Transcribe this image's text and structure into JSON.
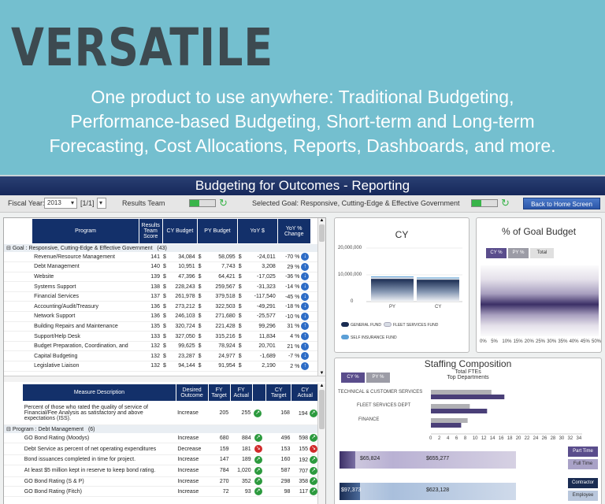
{
  "hero": {
    "title": "VERSATILE",
    "line1": "One product to use anywhere: Traditional Budgeting,",
    "line2": "Performance-based Budgeting, Short-term and Long-term",
    "line3": "Forecasting, Cost Allocations, Reports, Dashboards, and more."
  },
  "app": {
    "title": "Budgeting for Outcomes - Reporting",
    "fiscal_year_label": "Fiscal Year:",
    "fiscal_year_value": "2013",
    "page_value": "[1/1]",
    "results_team_label": "Results Team",
    "selected_goal": "Selected Goal: Responsive, Cutting-Edge & Effective Government",
    "home_button": "Back to Home Screen"
  },
  "colors": {
    "navy": "#13306a",
    "accent_green": "#39b54a",
    "teal_bg": "#74bfcf"
  },
  "program_table": {
    "headers": [
      "Program",
      "Results Team Score",
      "CY Budget",
      "PY Budget",
      "YoY $",
      "YoY % Change"
    ],
    "group_label": "Goal : Responsive, Cutting-Edge & Effective Government",
    "group_count": "(43)",
    "rows": [
      {
        "program": "Revenue/Resource Management",
        "score": "141",
        "cy": "34,084",
        "py": "58,095",
        "yoy": "-24,011",
        "pct": "-70 %",
        "dir": "down"
      },
      {
        "program": "Debt Management",
        "score": "140",
        "cy": "10,951",
        "py": "7,743",
        "yoy": "3,208",
        "pct": "29 %",
        "dir": "up"
      },
      {
        "program": "Website",
        "score": "139",
        "cy": "47,396",
        "py": "64,421",
        "yoy": "-17,025",
        "pct": "-36 %",
        "dir": "down"
      },
      {
        "program": "Systems Support",
        "score": "138",
        "cy": "228,243",
        "py": "259,567",
        "yoy": "-31,323",
        "pct": "-14 %",
        "dir": "down"
      },
      {
        "program": "Financial Services",
        "score": "137",
        "cy": "261,978",
        "py": "379,518",
        "yoy": "-117,540",
        "pct": "-45 %",
        "dir": "down"
      },
      {
        "program": "Accounting/Audit/Treasury",
        "score": "136",
        "cy": "273,212",
        "py": "322,503",
        "yoy": "-49,291",
        "pct": "-18 %",
        "dir": "down"
      },
      {
        "program": "Network Support",
        "score": "136",
        "cy": "246,103",
        "py": "271,680",
        "yoy": "-25,577",
        "pct": "-10 %",
        "dir": "down"
      },
      {
        "program": "Building Repairs and Maintenance",
        "score": "135",
        "cy": "320,724",
        "py": "221,428",
        "yoy": "99,296",
        "pct": "31 %",
        "dir": "up"
      },
      {
        "program": "Support/Help Desk",
        "score": "133",
        "cy": "327,050",
        "py": "315,216",
        "yoy": "11,834",
        "pct": "4 %",
        "dir": "up"
      },
      {
        "program": "Budget Preparation, Coordination, and",
        "score": "132",
        "cy": "99,625",
        "py": "78,924",
        "yoy": "20,701",
        "pct": "21 %",
        "dir": "up"
      },
      {
        "program": "Capital Budgeting",
        "score": "132",
        "cy": "23,287",
        "py": "24,977",
        "yoy": "-1,689",
        "pct": "-7 %",
        "dir": "down"
      },
      {
        "program": "Legislative Liaison",
        "score": "132",
        "cy": "94,144",
        "py": "91,954",
        "yoy": "2,190",
        "pct": "2 %",
        "dir": "up"
      }
    ]
  },
  "measure_table": {
    "headers": [
      "Measure Description",
      "Desired Outcome",
      "FY Target",
      "FY Actual",
      "",
      "CY Target",
      "CY Actual"
    ],
    "first_row": {
      "desc": "Percent of those who rated the quality of service of Financial/Fee Analysis as satisfactory and above expectations (ISS).",
      "outcome": "Increase",
      "fyt": "205",
      "fya": "255",
      "badge": "green",
      "cyt": "168",
      "cya": "194",
      "badge2": "green"
    },
    "group_label": "Program : Debt Management",
    "group_count": "(6)",
    "rows": [
      {
        "desc": "GO Bond Rating (Moodys)",
        "outcome": "Increase",
        "fyt": "680",
        "fya": "884",
        "b1": "green",
        "cyt": "496",
        "cya": "598",
        "b2": "green"
      },
      {
        "desc": "Debt Service as percent of net operating expenditures",
        "outcome": "Decrease",
        "fyt": "159",
        "fya": "181",
        "b1": "red",
        "cyt": "153",
        "cya": "155",
        "b2": "red"
      },
      {
        "desc": "Bond issuances completed in time for project.",
        "outcome": "Increase",
        "fyt": "147",
        "fya": "189",
        "b1": "green",
        "cyt": "160",
        "cya": "192",
        "b2": "green"
      },
      {
        "desc": "At least $5 million kept in reserve to keep bond rating.",
        "outcome": "Increase",
        "fyt": "784",
        "fya": "1,020",
        "b1": "green",
        "cyt": "587",
        "cya": "707",
        "b2": "green"
      },
      {
        "desc": "GO Bond Rating (S & P)",
        "outcome": "Increase",
        "fyt": "270",
        "fya": "352",
        "b1": "green",
        "cyt": "298",
        "cya": "358",
        "b2": "green"
      },
      {
        "desc": "GO Bond Rating (Fitch)",
        "outcome": "Increase",
        "fyt": "72",
        "fya": "93",
        "b1": "green",
        "cyt": "98",
        "cya": "117",
        "b2": "green"
      }
    ]
  },
  "cy_card": {
    "title": "CY",
    "yticks": [
      "20,000,000",
      "10,000,000",
      "0"
    ],
    "xlabels": [
      "PY",
      "CY"
    ],
    "legend": [
      "GENERAL FUND",
      "FLEET SERVICES FUND",
      "SELF INSURANCE FUND"
    ]
  },
  "chart_data": [
    {
      "type": "bar",
      "title": "CY",
      "categories": [
        "PY",
        "CY"
      ],
      "series": [
        {
          "name": "GENERAL FUND",
          "values": [
            8500000,
            8200000
          ]
        },
        {
          "name": "FLEET SERVICES FUND",
          "values": [
            600000,
            500000
          ]
        },
        {
          "name": "SELF INSURANCE FUND",
          "values": [
            300000,
            300000
          ]
        }
      ],
      "ylim": [
        0,
        20000000
      ]
    },
    {
      "type": "bar",
      "title": "Staffing Composition",
      "subtitle": "Total FTEs Top Departments",
      "categories": [
        "TECHNICAL & CUSTOMER SERVICES",
        "FLEET SERVICES DEPT",
        "FINANCE"
      ],
      "series": [
        {
          "values": [
            14,
            9,
            8.5
          ]
        },
        {
          "values": [
            17,
            13,
            7
          ]
        }
      ],
      "xticks": [
        0,
        2,
        4,
        6,
        8,
        10,
        12,
        14,
        16,
        18,
        20,
        22,
        24,
        26,
        28,
        30,
        32,
        34
      ],
      "xlim": [
        0,
        35
      ]
    }
  ],
  "goal_card": {
    "title": "% of Goal Budget",
    "tabs": [
      "CY %",
      "PY %",
      "Total"
    ],
    "xticks": [
      "0%",
      "5%",
      "10%",
      "15%",
      "20%",
      "25%",
      "30%",
      "35%",
      "40%",
      "45%",
      "50%"
    ]
  },
  "staff_card": {
    "title": "Staffing Composition",
    "subtitle1": "Total FTEs",
    "subtitle2": "Top Departments",
    "tabs": [
      "CY %",
      "PY %"
    ],
    "departments": [
      "TECHNICAL & CUSTOMER SERVICES",
      "FLEET SERVICES DEPT",
      "FINANCE"
    ],
    "xticks": [
      "0",
      "2",
      "4",
      "6",
      "8",
      "10",
      "12",
      "14",
      "16",
      "18",
      "20",
      "22",
      "24",
      "26",
      "28",
      "30",
      "32",
      "34"
    ],
    "bar1_left": "$65,824",
    "bar1_right": "$655,277",
    "bar2_left": "$97,373",
    "bar2_right": "$623,128",
    "legend": [
      "Part Time",
      "Full Time",
      "Contractor",
      "Employee"
    ]
  }
}
